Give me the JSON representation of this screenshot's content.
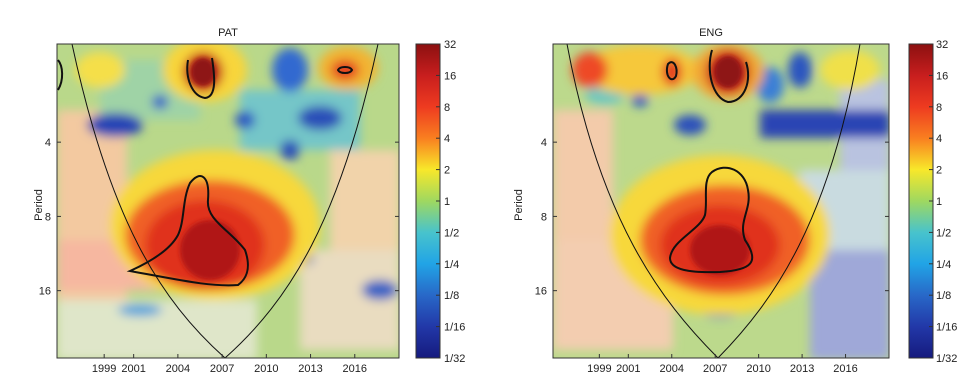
{
  "chart_data": [
    {
      "type": "heatmap",
      "subtype": "wavelet-power-spectrum",
      "title": "PAT",
      "ylabel": "Period",
      "xlabel": "",
      "x_ticks": [
        "1999",
        "2001",
        "2004",
        "2007",
        "2010",
        "2013",
        "2016"
      ],
      "y_ticks": [
        "4",
        "8",
        "16"
      ],
      "y_scale": "log2",
      "y_range": [
        1.6,
        30
      ],
      "colorbar": {
        "labels": [
          "32",
          "16",
          "8",
          "4",
          "2",
          "1",
          "1/2",
          "1/4",
          "1/8",
          "1/16",
          "1/32"
        ],
        "scale": "log2"
      },
      "hotspots": [
        {
          "year": 2005.0,
          "period": 10.5,
          "power": 24
        },
        {
          "year": 2005.5,
          "period": 2.1,
          "power": 24
        },
        {
          "year": 2015.0,
          "period": 2.2,
          "power": 12
        },
        {
          "year": 2009.0,
          "period": 8.5,
          "power": 6
        }
      ],
      "significant_regions": [
        {
          "center_year": 2005.5,
          "center_period": 2.1
        },
        {
          "center_year": 2005.0,
          "center_period": 11.0
        },
        {
          "center_year": 2015.0,
          "center_period": 2.3
        }
      ]
    },
    {
      "type": "heatmap",
      "subtype": "wavelet-power-spectrum",
      "title": "ENG",
      "ylabel": "Period",
      "xlabel": "",
      "x_ticks": [
        "1999",
        "2001",
        "2004",
        "2007",
        "2010",
        "2013",
        "2016"
      ],
      "y_ticks": [
        "4",
        "8",
        "16"
      ],
      "y_scale": "log2",
      "y_range": [
        1.6,
        30
      ],
      "colorbar": {
        "labels": [
          "32",
          "16",
          "8",
          "4",
          "2",
          "1",
          "1/2",
          "1/4",
          "1/8",
          "1/16",
          "1/32"
        ],
        "scale": "log2"
      },
      "hotspots": [
        {
          "year": 2007.5,
          "period": 10.0,
          "power": 24
        },
        {
          "year": 2008.0,
          "period": 2.1,
          "power": 24
        },
        {
          "year": 2003.8,
          "period": 2.2,
          "power": 10
        }
      ],
      "significant_regions": [
        {
          "center_year": 2008.0,
          "center_period": 2.1
        },
        {
          "center_year": 2007.5,
          "center_period": 9.5
        },
        {
          "center_year": 2003.8,
          "center_period": 2.2
        }
      ]
    }
  ]
}
